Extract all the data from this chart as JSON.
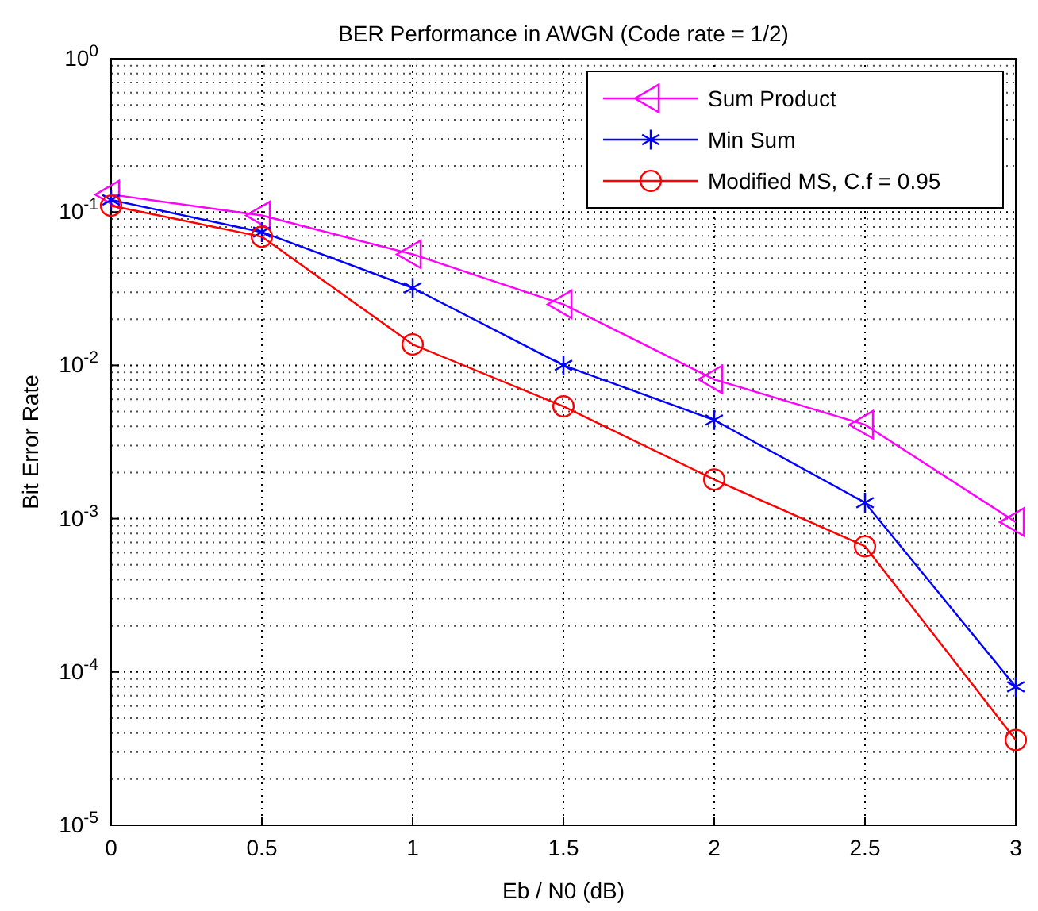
{
  "chart_data": {
    "type": "line",
    "title": "BER Performance in AWGN (Code rate = 1/2)",
    "xlabel": "Eb / N0 (dB)",
    "ylabel": "Bit Error Rate",
    "x": [
      0,
      0.5,
      1,
      1.5,
      2,
      2.5,
      3
    ],
    "series": [
      {
        "name": "Sum Product",
        "color": "#ff00ff",
        "marker": "triangle",
        "values": [
          0.13,
          0.095,
          0.053,
          0.025,
          0.0081,
          0.0041,
          0.00095
        ]
      },
      {
        "name": "Min Sum",
        "color": "#0000ff",
        "marker": "cross",
        "values": [
          0.12,
          0.074,
          0.032,
          0.01,
          0.0044,
          0.00127,
          8e-05
        ]
      },
      {
        "name": "Modified MS, C.f = 0.95",
        "color": "#ff0000",
        "marker": "circle",
        "values": [
          0.11,
          0.069,
          0.0137,
          0.0054,
          0.0018,
          0.00066,
          3.6e-05
        ]
      }
    ],
    "log": "y",
    "xlim": [
      0,
      3
    ],
    "ylim": [
      1e-05,
      1
    ],
    "xticks": [
      0,
      0.5,
      1,
      1.5,
      2,
      2.5,
      3
    ],
    "yticks": [
      {
        "value": 1e-05,
        "label": "10$^{-5}$"
      },
      {
        "value": 0.0001,
        "label": "10$^{-4}$"
      },
      {
        "value": 0.001,
        "label": "10$^{-3}$"
      },
      {
        "value": 0.01,
        "label": "10$^{-2}$"
      },
      {
        "value": 0.1,
        "label": "10$^{-1}$"
      },
      {
        "value": 1,
        "label": "10$^{0}$"
      }
    ],
    "grid": true,
    "legend": "top right",
    "line_style": "solid"
  }
}
